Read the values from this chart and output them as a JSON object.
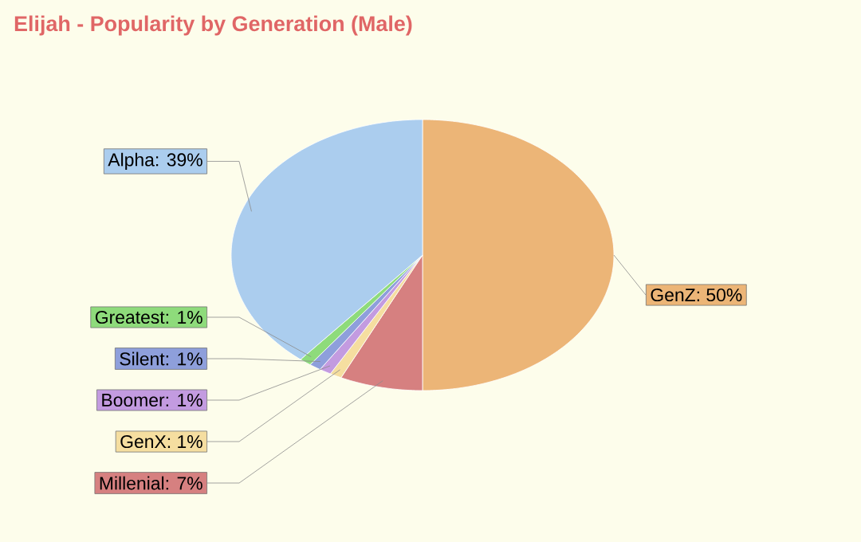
{
  "chart_data": {
    "type": "pie",
    "title": "Elijah - Popularity by Generation (Male)",
    "categories": [
      "GenZ",
      "Millenial",
      "GenX",
      "Boomer",
      "Silent",
      "Greatest",
      "Alpha"
    ],
    "values": [
      50,
      7,
      1,
      1,
      1,
      1,
      39
    ],
    "value_labels": [
      ": 50%",
      ": 7%",
      ": 1%",
      ": 1%",
      ": 1%",
      ": 1%",
      ": 39%"
    ],
    "colors": [
      "#ecb577",
      "#d68080",
      "#f5dea0",
      "#c39be0",
      "#8e9fdb",
      "#8edb7b",
      "#abcdee"
    ]
  }
}
